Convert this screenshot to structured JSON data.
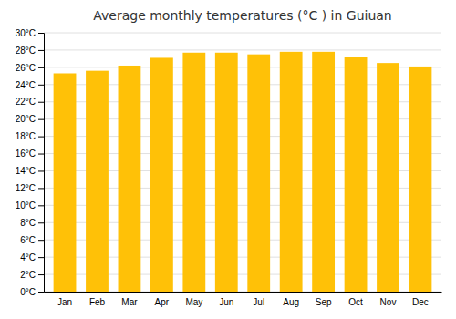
{
  "chart_data": {
    "type": "bar",
    "title": "Average monthly temperatures (°C ) in Guiuan",
    "categories": [
      "Jan",
      "Feb",
      "Mar",
      "Apr",
      "May",
      "Jun",
      "Jul",
      "Aug",
      "Sep",
      "Oct",
      "Nov",
      "Dec"
    ],
    "values": [
      25.3,
      25.6,
      26.2,
      27.1,
      27.7,
      27.7,
      27.5,
      27.8,
      27.8,
      27.2,
      26.5,
      26.1
    ],
    "color": "#FFC107",
    "ylim": [
      0,
      30
    ],
    "yticks": [
      {
        "value": 0,
        "label": "0°C"
      },
      {
        "value": 2,
        "label": "2°C"
      },
      {
        "value": 4,
        "label": "4°C"
      },
      {
        "value": 6,
        "label": "6°C"
      },
      {
        "value": 8,
        "label": "8°C"
      },
      {
        "value": 10,
        "label": "10°C"
      },
      {
        "value": 12,
        "label": "12°C"
      },
      {
        "value": 14,
        "label": "14°C"
      },
      {
        "value": 16,
        "label": "16°C"
      },
      {
        "value": 18,
        "label": "18°C"
      },
      {
        "value": 20,
        "label": "20°C"
      },
      {
        "value": 22,
        "label": "22°C"
      },
      {
        "value": 24,
        "label": "24°C"
      },
      {
        "value": 26,
        "label": "26°C"
      },
      {
        "value": 28,
        "label": "28°C"
      },
      {
        "value": 30,
        "label": "30°C"
      }
    ],
    "grid": true
  }
}
